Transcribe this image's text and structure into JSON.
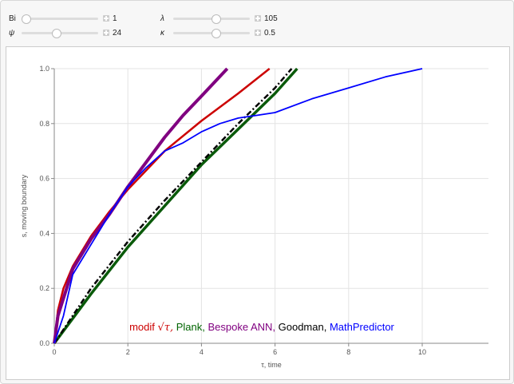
{
  "controls": [
    {
      "label": "Bi",
      "value": "1",
      "fraction": 0.05
    },
    {
      "label": "λ",
      "value": "105",
      "fraction": 0.55
    },
    {
      "label": "ψ",
      "value": "24",
      "fraction": 0.45
    },
    {
      "label": "κ",
      "value": "0.5",
      "fraction": 0.55
    }
  ],
  "chart_data": {
    "type": "line",
    "xlabel": "τ, time",
    "ylabel": "s, moving boundary",
    "xlim": [
      0,
      11.8
    ],
    "ylim": [
      0,
      1
    ],
    "xticks": [
      0,
      2,
      4,
      6,
      8,
      10
    ],
    "yticks": [
      0,
      0.2,
      0.4,
      0.6,
      0.8,
      1.0
    ],
    "ytick_labels": [
      "0.0",
      "0.2",
      "0.4",
      "0.6",
      "0.8",
      "1.0"
    ],
    "grid": true,
    "legend_placement": "bottom",
    "legend": [
      {
        "text": "modif",
        "extra": "√τ",
        "color": "#cc0000"
      },
      {
        "text": "Plank,",
        "color": "#006400"
      },
      {
        "text": "Bespoke ANN,",
        "color": "#800080"
      },
      {
        "text": "Goodman,",
        "color": "#000000"
      },
      {
        "text": "MathPredictor",
        "color": "#0000ff"
      }
    ],
    "series": [
      {
        "name": "Plank",
        "color": "#0a5a0a",
        "width": 3.5,
        "dash": "",
        "x": [
          0,
          1,
          2,
          3,
          4,
          5,
          6,
          6.6
        ],
        "y": [
          0,
          0.18,
          0.35,
          0.5,
          0.65,
          0.78,
          0.91,
          1
        ]
      },
      {
        "name": "Goodman",
        "color": "#000000",
        "width": 2.5,
        "dash": "7,3,2,3",
        "x": [
          0,
          1,
          2,
          3,
          4,
          5,
          6,
          6.45
        ],
        "y": [
          0,
          0.2,
          0.37,
          0.52,
          0.66,
          0.8,
          0.93,
          1
        ]
      },
      {
        "name": "modif √τ",
        "color": "#cc0000",
        "width": 2.5,
        "dash": "",
        "x": [
          0,
          0.1,
          0.25,
          0.5,
          1,
          1.5,
          2,
          3,
          4,
          5,
          5.85
        ],
        "y": [
          0,
          0.12,
          0.2,
          0.28,
          0.39,
          0.48,
          0.56,
          0.7,
          0.81,
          0.91,
          1
        ]
      },
      {
        "name": "Bespoke ANN",
        "color": "#800080",
        "width": 4,
        "dash": "",
        "x": [
          0,
          0.1,
          0.5,
          1,
          1.5,
          2,
          2.5,
          3,
          3.5,
          4,
          4.7
        ],
        "y": [
          0,
          0.1,
          0.27,
          0.38,
          0.47,
          0.57,
          0.66,
          0.75,
          0.83,
          0.9,
          1
        ]
      },
      {
        "name": "MathPredictor",
        "color": "#0000ff",
        "width": 1.8,
        "dash": "",
        "x": [
          0,
          0.25,
          0.5,
          1,
          1.5,
          2,
          2.5,
          3,
          3.5,
          4,
          4.5,
          5,
          5.5,
          6,
          7,
          8,
          9,
          10
        ],
        "y": [
          0,
          0.1,
          0.25,
          0.36,
          0.47,
          0.57,
          0.64,
          0.7,
          0.73,
          0.77,
          0.8,
          0.82,
          0.83,
          0.84,
          0.89,
          0.93,
          0.97,
          1
        ]
      }
    ]
  }
}
